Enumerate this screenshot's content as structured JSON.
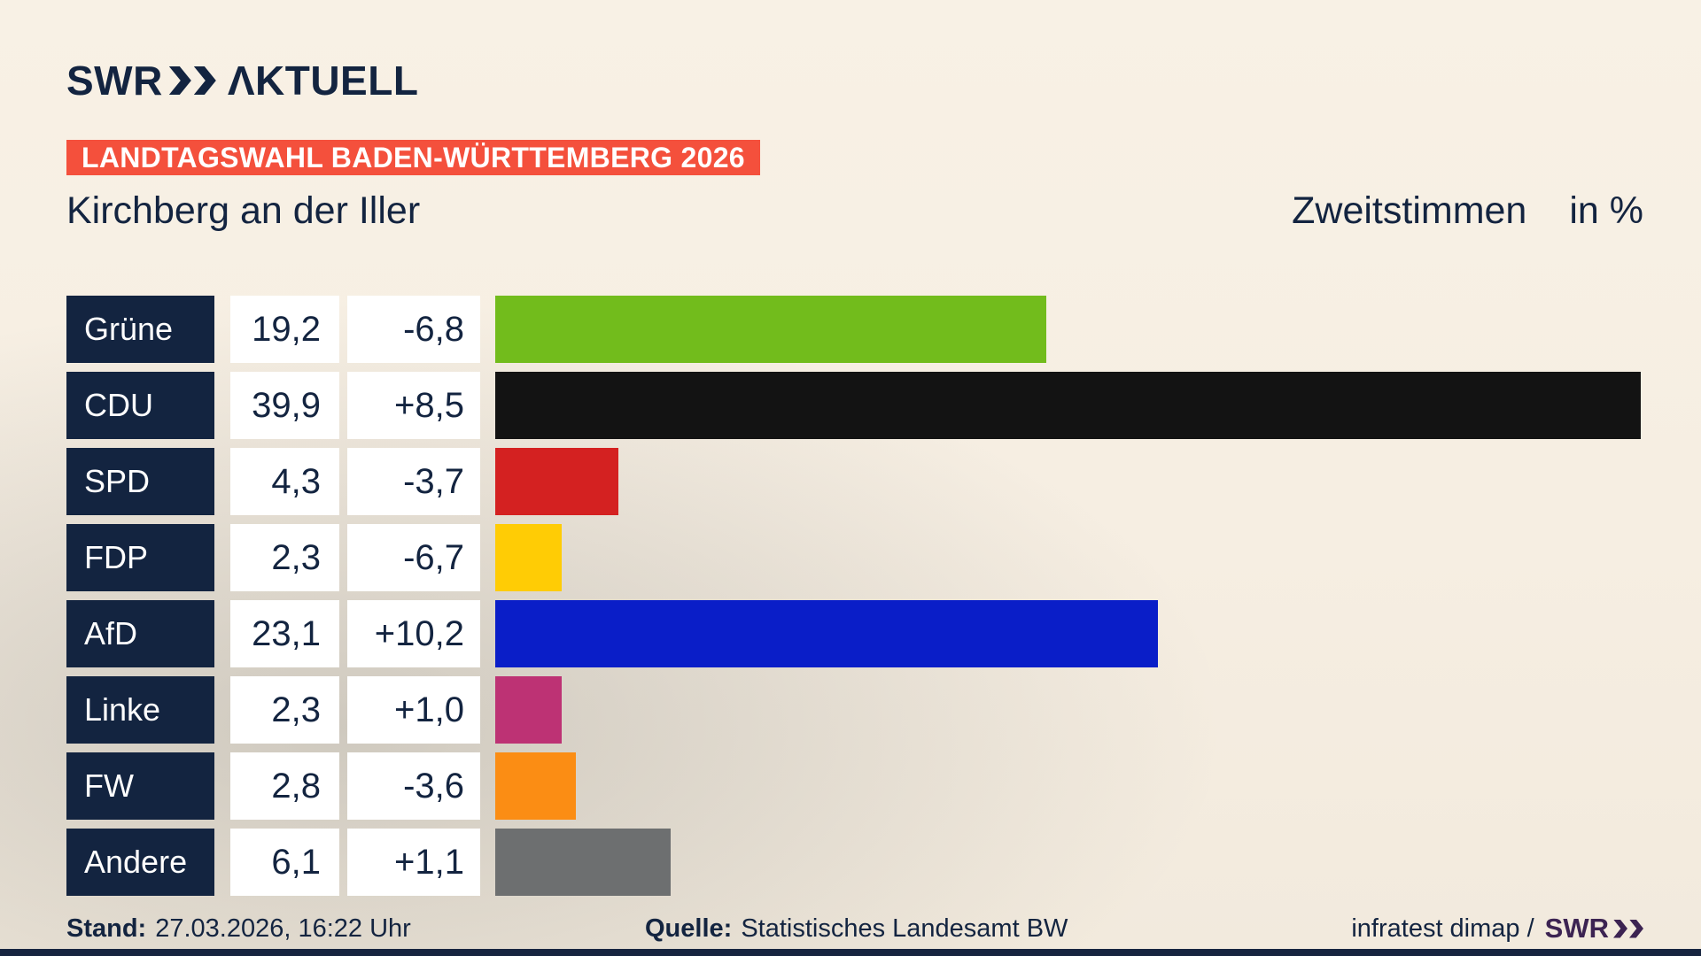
{
  "brand": {
    "swr": "SWR",
    "aktuell": "ΛKTUELL"
  },
  "badge": {
    "label": "LANDTAGSWAHL BADEN-WÜRTTEMBERG 2026",
    "bg": "#f4503c"
  },
  "header": {
    "title": "Kirchberg an der Iller",
    "measure": "Zweitstimmen",
    "unit": "in %"
  },
  "chart_data": {
    "type": "bar",
    "title": "Landtagswahl Baden-Württemberg 2026 — Kirchberg an der Iller, Zweitstimmen in %",
    "xlim": [
      0,
      40
    ],
    "grid": false,
    "categories": [
      "Grüne",
      "CDU",
      "SPD",
      "FDP",
      "AfD",
      "Linke",
      "FW",
      "Andere"
    ],
    "values": [
      19.2,
      39.9,
      4.3,
      2.3,
      23.1,
      2.3,
      2.8,
      6.1
    ],
    "changes": [
      -6.8,
      8.5,
      -3.7,
      -6.7,
      10.2,
      1.0,
      -3.6,
      1.1
    ],
    "max": 40,
    "rows": [
      {
        "party": "Grüne",
        "value": "19,2",
        "value_num": 19.2,
        "change": "-6,8",
        "color": "#72bc1c"
      },
      {
        "party": "CDU",
        "value": "39,9",
        "value_num": 39.9,
        "change": "+8,5",
        "color": "#131313"
      },
      {
        "party": "SPD",
        "value": "4,3",
        "value_num": 4.3,
        "change": "-3,7",
        "color": "#d42121"
      },
      {
        "party": "FDP",
        "value": "2,3",
        "value_num": 2.3,
        "change": "-6,7",
        "color": "#ffcc05"
      },
      {
        "party": "AfD",
        "value": "23,1",
        "value_num": 23.1,
        "change": "+10,2",
        "color": "#0a1ec8"
      },
      {
        "party": "Linke",
        "value": "2,3",
        "value_num": 2.3,
        "change": "+1,0",
        "color": "#bd3274"
      },
      {
        "party": "FW",
        "value": "2,8",
        "value_num": 2.8,
        "change": "-3,6",
        "color": "#fb8d14"
      },
      {
        "party": "Andere",
        "value": "6,1",
        "value_num": 6.1,
        "change": "+1,1",
        "color": "#6d6f70"
      }
    ]
  },
  "footer": {
    "stand_label": "Stand:",
    "stand_value": "27.03.2026, 16:22 Uhr",
    "quelle_label": "Quelle:",
    "quelle_value": "Statistisches Landesamt BW",
    "credit_prefix": "infratest dimap /",
    "credit_brand": "SWR"
  }
}
